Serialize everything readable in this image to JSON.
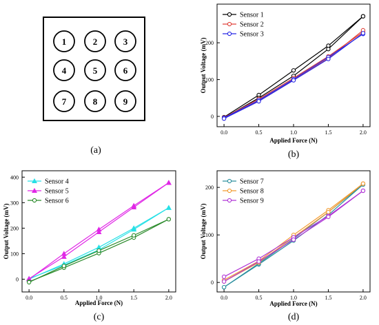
{
  "sensor_grid": {
    "cells": [
      "1",
      "2",
      "3",
      "4",
      "5",
      "6",
      "7",
      "8",
      "9"
    ],
    "caption": "(a)"
  },
  "chart_data": [
    {
      "type": "line",
      "panel": "b",
      "caption": "(b)",
      "xlabel": "Applied Force (N)",
      "ylabel": "Output Voltage (mV)",
      "x": [
        0.0,
        0.5,
        1.0,
        1.5,
        2.0
      ],
      "xticks": [
        "0.0",
        "0.5",
        "1.0",
        "1.5",
        "2.0"
      ],
      "xlim": [
        -0.1,
        2.1
      ],
      "ylim": [
        -28,
        305
      ],
      "yticks": [
        0,
        100,
        200
      ],
      "legend_position": "top-left",
      "series": [
        {
          "name": "Sensor 1",
          "color": "#000000",
          "marker": "circle",
          "loading": [
            -2,
            58,
            125,
            192,
            272
          ],
          "unloading": [
            -4,
            50,
            110,
            183,
            272
          ]
        },
        {
          "name": "Sensor 2",
          "color": "#e0423a",
          "marker": "circle",
          "loading": [
            -3,
            47,
            104,
            163,
            229
          ],
          "unloading": [
            -5,
            43,
            99,
            158,
            234
          ]
        },
        {
          "name": "Sensor 3",
          "color": "#2626e6",
          "marker": "circle",
          "loading": [
            -4,
            44,
            101,
            161,
            224
          ],
          "unloading": [
            -6,
            41,
            98,
            156,
            226
          ]
        }
      ]
    },
    {
      "type": "line",
      "panel": "c",
      "caption": "(c)",
      "xlabel": "Applied Force (N)",
      "ylabel": "Output Voltage (mV)",
      "x": [
        0.0,
        0.5,
        1.0,
        1.5,
        2.0
      ],
      "xticks": [
        "0.0",
        "0.5",
        "1.0",
        "1.5",
        "2.0"
      ],
      "xlim": [
        -0.1,
        2.1
      ],
      "ylim": [
        -50,
        425
      ],
      "yticks": [
        0,
        100,
        200,
        300,
        400
      ],
      "legend_position": "top-left",
      "series": [
        {
          "name": "Sensor 4",
          "color": "#27e0e6",
          "marker": "triangle",
          "loading": [
            0,
            60,
            125,
            200,
            280
          ],
          "unloading": [
            2,
            55,
            115,
            195,
            280
          ]
        },
        {
          "name": "Sensor 5",
          "color": "#e027e6",
          "marker": "triangle",
          "loading": [
            0,
            100,
            195,
            288,
            378
          ],
          "unloading": [
            2,
            88,
            185,
            282,
            378
          ]
        },
        {
          "name": "Sensor 6",
          "color": "#2a8a2a",
          "marker": "circle",
          "loading": [
            -10,
            45,
            102,
            163,
            235
          ],
          "unloading": [
            -12,
            52,
            112,
            172,
            235
          ]
        }
      ]
    },
    {
      "type": "line",
      "panel": "d",
      "caption": "(d)",
      "xlabel": "Applied Force (N)",
      "ylabel": "Output Voltage (mV)",
      "x": [
        0.0,
        0.5,
        1.0,
        1.5,
        2.0
      ],
      "xticks": [
        "0.0",
        "0.5",
        "1.0",
        "1.5",
        "2.0"
      ],
      "xlim": [
        -0.1,
        2.1
      ],
      "ylim": [
        -20,
        235
      ],
      "yticks": [
        0,
        100,
        200
      ],
      "legend_position": "top-left",
      "series": [
        {
          "name": "Sensor 7",
          "color": "#2b8f9e",
          "marker": "circle",
          "loading": [
            -10,
            38,
            88,
            142,
            206
          ],
          "unloading": [
            -10,
            40,
            92,
            148,
            206
          ]
        },
        {
          "name": "Sensor 8",
          "color": "#f29a2e",
          "marker": "circle",
          "loading": [
            5,
            45,
            100,
            152,
            208
          ],
          "unloading": [
            2,
            42,
            95,
            148,
            208
          ]
        },
        {
          "name": "Sensor 9",
          "color": "#b034d6",
          "marker": "circle",
          "loading": [
            12,
            50,
            95,
            140,
            193
          ],
          "unloading": [
            2,
            44,
            90,
            138,
            193
          ]
        }
      ]
    }
  ]
}
